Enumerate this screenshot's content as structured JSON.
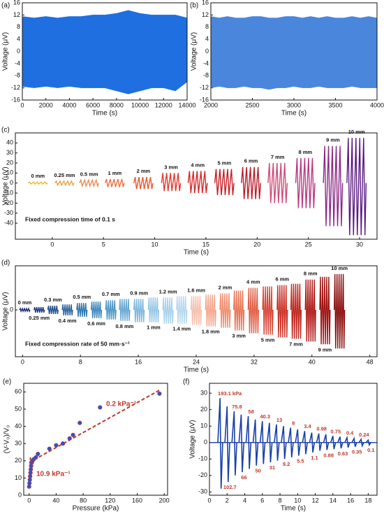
{
  "chart_data": [
    {
      "type": "band",
      "label": "(a)",
      "xlabel": "Time (s)",
      "ylabel": "Voltage (μV)",
      "color": "#1f6fe0",
      "x": [
        0,
        1000,
        2000,
        3000,
        4000,
        5000,
        6000,
        7000,
        8000,
        9000,
        10000,
        11000,
        12000,
        13000,
        14000
      ],
      "upper": [
        11.5,
        11,
        11.5,
        11,
        11.5,
        11.5,
        12,
        12,
        12.5,
        13.5,
        12.5,
        12,
        12,
        12,
        11
      ],
      "lower": [
        -11.5,
        -12,
        -11.5,
        -12,
        -11.5,
        -12,
        -12,
        -12,
        -13,
        -14,
        -13,
        -12,
        -12,
        -13,
        -10
      ],
      "xlim": [
        0,
        14000
      ],
      "xticks": [
        0,
        2000,
        4000,
        6000,
        8000,
        10000,
        12000,
        14000
      ],
      "ylim": [
        -16,
        16
      ],
      "yticks": [
        -16,
        -12,
        -8,
        -4,
        0,
        4,
        8,
        12,
        16
      ]
    },
    {
      "type": "band",
      "label": "(b)",
      "xlabel": "Time (s)",
      "ylabel": "Voltage (μV)",
      "color": "#4a86dc",
      "x": [
        2000,
        2100,
        2200,
        2300,
        2400,
        2500,
        2600,
        2700,
        2800,
        2900,
        3000,
        3100,
        3200,
        3300,
        3400,
        3500,
        3600,
        3700,
        3800,
        3900,
        4000
      ],
      "upper": [
        11.5,
        11,
        11.5,
        11,
        11,
        11.5,
        11.5,
        11,
        11,
        11.5,
        11.5,
        11,
        11.5,
        11,
        11.5,
        11,
        11,
        11.5,
        11,
        11.5,
        11
      ],
      "lower": [
        -12,
        -11.5,
        -12,
        -12,
        -11.5,
        -12,
        -12,
        -12.5,
        -12,
        -12,
        -11.5,
        -12,
        -12,
        -11.5,
        -12,
        -12,
        -12,
        -11.5,
        -12,
        -12,
        -12
      ],
      "xlim": [
        2000,
        4000
      ],
      "xticks": [
        2000,
        2500,
        3000,
        3500,
        4000
      ],
      "ylim": [
        -16,
        16
      ],
      "yticks": [
        -16,
        -12,
        -8,
        -4,
        0,
        4,
        8,
        12,
        16
      ]
    },
    {
      "type": "bursts",
      "label": "(c)",
      "xlabel": "Time (s)",
      "ylabel": "Voltage (μV)",
      "annotation": "Fixed compression time of 0.1 s",
      "categories": [
        "0 mm",
        "0.25 mm",
        "0.5 mm",
        "1 mm",
        "2 mm",
        "3 mm",
        "4 mm",
        "5 mm",
        "6 mm",
        "7 mm",
        "8 mm",
        "9 mm",
        "10 mm"
      ],
      "x": [
        -1.4,
        1.2,
        3.6,
        6.1,
        8.9,
        11.6,
        14.2,
        16.8,
        19.4,
        22,
        24.7,
        27.4,
        29.7
      ],
      "upper": [
        1,
        2,
        3,
        4,
        6,
        10,
        12,
        14,
        16,
        20,
        25,
        37,
        45
      ],
      "lower": [
        -1,
        -2,
        -3,
        -4,
        -6,
        -8,
        -10,
        -12,
        -16,
        -20,
        -25,
        -43,
        -52
      ],
      "colors": [
        "#e8b820",
        "#f0a040",
        "#f08a50",
        "#ef7240",
        "#ea5a30",
        "#e03a30",
        "#d82828",
        "#c81e24",
        "#b81c28",
        "#d04a78",
        "#b83a80",
        "#8a2a88",
        "#5a1a80"
      ],
      "xlim": [
        -3.6,
        31.7
      ],
      "xticks": [
        0,
        5,
        10,
        15,
        20,
        25,
        30
      ],
      "ylim": [
        -56,
        50
      ],
      "yticks": [
        -40,
        -30,
        -20,
        -10,
        0,
        10,
        20,
        30,
        40
      ]
    },
    {
      "type": "bursts",
      "label": "(d)",
      "xlabel": "Time (s)",
      "ylabel": "Voltage (μV)",
      "annotation": "Fixed compression rate of 50 mm·s⁻¹",
      "categories": [
        "0 mm",
        "0.25 mm",
        "0.3 mm",
        "0.4 mm",
        "0.5 mm",
        "0.6 mm",
        "0.7 mm",
        "0.8 mm",
        "0.9 mm",
        "1 mm",
        "1.2 mm",
        "1.4 mm",
        "1.6 mm",
        "1.8 mm",
        "2 mm",
        "3 mm",
        "4 mm",
        "5 mm",
        "6 mm",
        "7 mm",
        "8 mm",
        "9 mm",
        "10 mm"
      ],
      "x": [
        0.3,
        2.3,
        4.2,
        6.2,
        8.2,
        10.2,
        12.2,
        14.1,
        16.1,
        18.1,
        20.1,
        22,
        24,
        26,
        28,
        29.9,
        31.9,
        33.9,
        35.9,
        37.8,
        39.8,
        41.8,
        43.8
      ],
      "upper": [
        1,
        2,
        3,
        4,
        5,
        6,
        7,
        8,
        8,
        9,
        9,
        10,
        10,
        11,
        12,
        14,
        16,
        17,
        18,
        19,
        22,
        24,
        26
      ],
      "lower": [
        -1,
        -2,
        -3,
        -4,
        -5,
        -6,
        -7,
        -8,
        -9,
        -9,
        -10,
        -10,
        -11,
        -12,
        -13,
        -15,
        -17,
        -18,
        -20,
        -21,
        -23,
        -25,
        -28
      ],
      "colors": [
        "#1a2a6a",
        "#1e3a80",
        "#24508f",
        "#2a66a0",
        "#3278b0",
        "#4088bc",
        "#5098c8",
        "#68a8d2",
        "#80b8dc",
        "#98c8e6",
        "#aad2ec",
        "#b8d8ee",
        "#f6c0b0",
        "#f4a890",
        "#f09070",
        "#e87858",
        "#e06048",
        "#d84838",
        "#cc3428",
        "#c02820",
        "#b01c1a",
        "#a01414",
        "#8c1010"
      ],
      "xlim": [
        -1,
        49
      ],
      "xticks": [
        0,
        8,
        16,
        24,
        32,
        40,
        48
      ],
      "ylim": [
        -34,
        32
      ],
      "yticks": [
        0
      ]
    },
    {
      "type": "scatter",
      "label": "(e)",
      "xlabel": "Pressure (kPa)",
      "ylabel": "(V-V₀)/V₀",
      "color": "#3050d0",
      "edge": "#c0392b",
      "x": [
        0,
        0.5,
        1,
        1.5,
        2,
        2.5,
        3,
        4,
        5,
        7,
        10,
        13,
        30,
        40,
        50,
        60,
        65,
        75,
        105,
        193
      ],
      "y": [
        5,
        7,
        9,
        11,
        13,
        15,
        17,
        19,
        20,
        21,
        22,
        24,
        27,
        29,
        30,
        33,
        35,
        42,
        51,
        59
      ],
      "fits": [
        {
          "x": [
            0,
            2
          ],
          "y": [
            4,
            22
          ]
        },
        {
          "x": [
            0,
            193
          ],
          "y": [
            19,
            61
          ]
        }
      ],
      "fit_color": "#c0392b",
      "annotations": [
        "0.2 kPa⁻¹",
        "10.9 kPa⁻¹"
      ],
      "xlim": [
        -8,
        205
      ],
      "xticks": [
        0,
        40,
        80,
        120,
        160,
        200
      ],
      "ylim": [
        0,
        65
      ],
      "yticks": [
        0,
        10,
        20,
        30,
        40,
        50,
        60
      ]
    },
    {
      "type": "pulses",
      "label": "(f)",
      "xlabel": "Time (s)",
      "ylabel": "Voltage (μV)",
      "color": "#1a3fa8",
      "label_color": "#c0392b",
      "categories": [
        "193.1 kPa",
        "102.7",
        "75.8",
        "66",
        "58",
        "50",
        "40.3",
        "31",
        "13",
        "9.2",
        "8",
        "5.5",
        "3.4",
        "1.1",
        "0.98",
        "0.88",
        "0.75",
        "0.63",
        "0.4",
        "0.35",
        "0.24",
        "0.1"
      ],
      "x": [
        1.2,
        2,
        2.8,
        3.6,
        4.4,
        5.2,
        6,
        6.8,
        7.6,
        8.4,
        9.2,
        10,
        10.8,
        11.6,
        12.4,
        13.2,
        14,
        14.8,
        15.6,
        16.4,
        17.2,
        18
      ],
      "upper": [
        27,
        22,
        19,
        17,
        16,
        14,
        13,
        12,
        11,
        10,
        9,
        8,
        7,
        6,
        5.5,
        5,
        4,
        3.5,
        3,
        2.5,
        2,
        1.5
      ],
      "lower": [
        -28,
        -24,
        -20,
        -18,
        -16,
        -14,
        -13,
        -12,
        -11,
        -10,
        -9,
        -8,
        -7,
        -6,
        -5,
        -4.5,
        -4,
        -3.5,
        -3,
        -2.5,
        -2,
        -1.5
      ],
      "xlim": [
        0,
        19
      ],
      "xticks": [
        0,
        2,
        4,
        6,
        8,
        10,
        12,
        14,
        16,
        18
      ],
      "ylim": [
        -32,
        36
      ],
      "yticks": [
        -30,
        -20,
        -10,
        0,
        10,
        20,
        30
      ]
    }
  ]
}
